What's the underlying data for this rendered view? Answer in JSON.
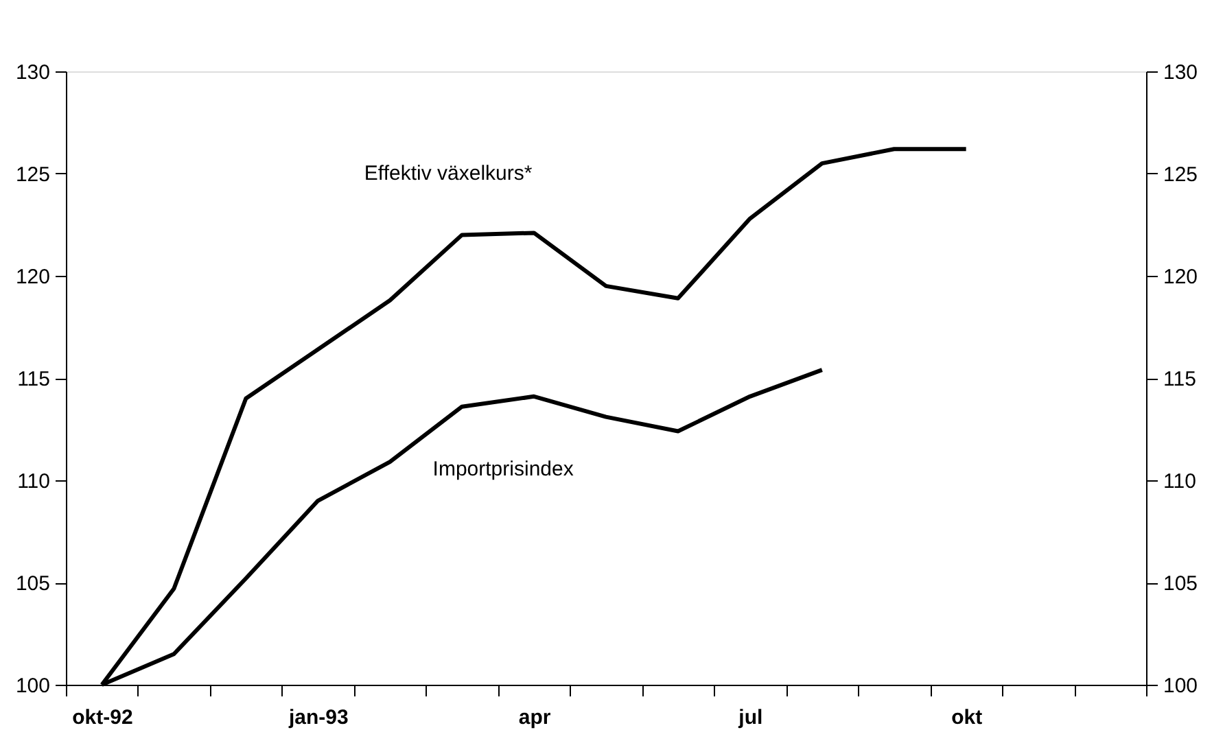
{
  "chart_data": {
    "type": "line",
    "categories": [
      "okt-92",
      null,
      null,
      "jan-93",
      null,
      null,
      "apr",
      null,
      null,
      "jul",
      null,
      null,
      "okt",
      null,
      null
    ],
    "series": [
      {
        "name": "Effektiv växelkurs*",
        "color": "#000000",
        "values": [
          100,
          104.7,
          114.0,
          116.4,
          118.8,
          122.0,
          122.1,
          119.5,
          118.9,
          122.8,
          125.5,
          126.2,
          126.2,
          null,
          null
        ]
      },
      {
        "name": "Importprisindex",
        "color": "#000000",
        "values": [
          100,
          101.5,
          105.2,
          109.0,
          110.9,
          113.6,
          114.1,
          113.1,
          112.4,
          114.1,
          115.4,
          null,
          null,
          null,
          null
        ]
      }
    ],
    "ylim": [
      100,
      130
    ],
    "yticks": [
      100,
      105,
      110,
      115,
      120,
      125,
      130
    ],
    "y2lim": [
      100,
      130
    ],
    "y2ticks": [
      100,
      105,
      110,
      115,
      120,
      125,
      130
    ],
    "grid": false,
    "legend": false,
    "marker": "none",
    "line_style": "solid"
  }
}
